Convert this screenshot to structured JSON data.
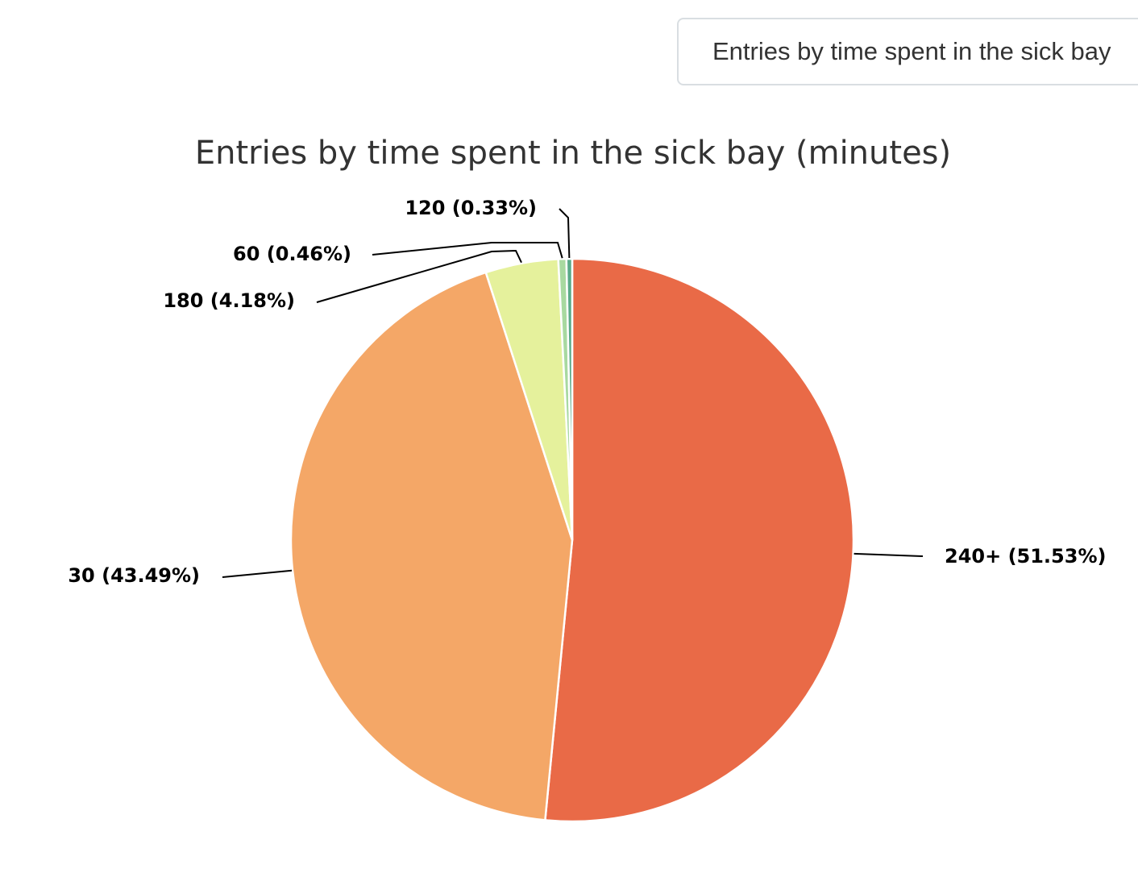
{
  "tooltip": {
    "text": "Entries by time spent in the sick bay"
  },
  "chart_data": {
    "type": "pie",
    "title": "Entries by time spent in the sick bay (minutes)",
    "slices": [
      {
        "category": "240+",
        "percent": 51.53,
        "label": "240+ (51.53%)",
        "color": "#e96a47"
      },
      {
        "category": "30",
        "percent": 43.49,
        "label": "30 (43.49%)",
        "color": "#f4a767"
      },
      {
        "category": "180",
        "percent": 4.18,
        "label": "180 (4.18%)",
        "color": "#e5f19c"
      },
      {
        "category": "60",
        "percent": 0.46,
        "label": "60 (0.46%)",
        "color": "#a8d9a0"
      },
      {
        "category": "120",
        "percent": 0.33,
        "label": "120 (0.33%)",
        "color": "#5aaa88"
      }
    ]
  }
}
